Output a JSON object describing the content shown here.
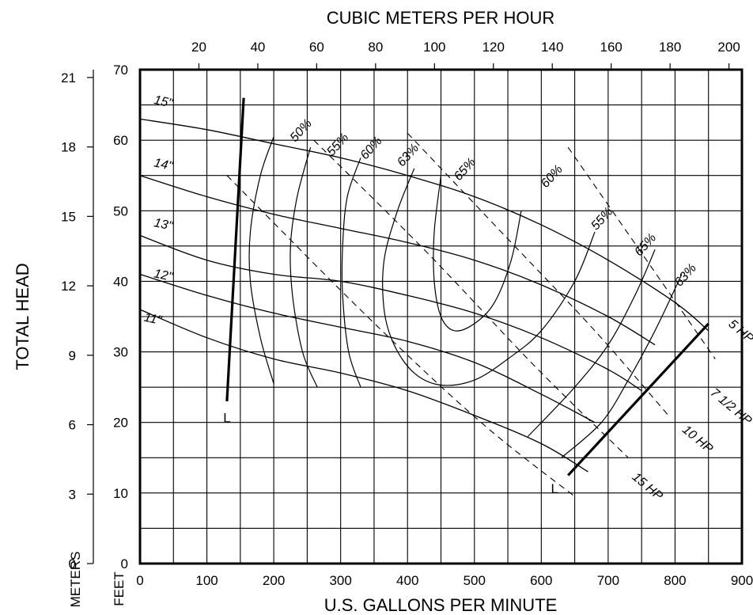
{
  "chart_data": {
    "type": "line",
    "x_bottom": {
      "label": "U.S. GALLONS PER MINUTE",
      "ticks": [
        "0",
        "100",
        "200",
        "300",
        "400",
        "500",
        "600",
        "700",
        "800",
        "900"
      ],
      "range": [
        0,
        900
      ],
      "grid_step": 50
    },
    "x_top": {
      "label": "CUBIC METERS PER HOUR",
      "ticks": [
        "20",
        "40",
        "60",
        "80",
        "100",
        "120",
        "140",
        "160",
        "180",
        "200"
      ],
      "range": [
        0,
        204.4
      ]
    },
    "y_feet": {
      "label": "FEET",
      "ticks": [
        "0",
        "10",
        "20",
        "30",
        "40",
        "50",
        "60",
        "70"
      ],
      "range": [
        0,
        70
      ],
      "grid_step": 5
    },
    "y_meters": {
      "label": "METERS",
      "ticks": [
        "0",
        "3",
        "6",
        "9",
        "12",
        "15",
        "18",
        "21"
      ],
      "range": [
        0,
        21.34
      ]
    },
    "y_title": "TOTAL HEAD",
    "grid": true,
    "impeller_curves": [
      {
        "label": "15\"",
        "points": [
          [
            0,
            63
          ],
          [
            100,
            61.5
          ],
          [
            200,
            59.5
          ],
          [
            300,
            57.5
          ],
          [
            400,
            55
          ],
          [
            500,
            52
          ],
          [
            600,
            48
          ],
          [
            700,
            43
          ],
          [
            800,
            37
          ],
          [
            850,
            33
          ]
        ]
      },
      {
        "label": "14\"",
        "points": [
          [
            0,
            55
          ],
          [
            100,
            52
          ],
          [
            200,
            49.5
          ],
          [
            300,
            47.5
          ],
          [
            400,
            45.5
          ],
          [
            500,
            43
          ],
          [
            600,
            39.5
          ],
          [
            700,
            35
          ],
          [
            770,
            31
          ]
        ]
      },
      {
        "label": "13\"",
        "points": [
          [
            0,
            46.5
          ],
          [
            100,
            43
          ],
          [
            200,
            41
          ],
          [
            300,
            40
          ],
          [
            400,
            38
          ],
          [
            500,
            35.5
          ],
          [
            600,
            32
          ],
          [
            700,
            27.5
          ],
          [
            750,
            24.5
          ]
        ]
      },
      {
        "label": "12\"",
        "points": [
          [
            0,
            41
          ],
          [
            100,
            38
          ],
          [
            200,
            35.5
          ],
          [
            300,
            33.5
          ],
          [
            400,
            31.5
          ],
          [
            500,
            28.5
          ],
          [
            600,
            24
          ],
          [
            680,
            20
          ]
        ]
      },
      {
        "label": "11\"",
        "points": [
          [
            0,
            36
          ],
          [
            100,
            32
          ],
          [
            200,
            29
          ],
          [
            300,
            27
          ],
          [
            400,
            24.5
          ],
          [
            500,
            21
          ],
          [
            600,
            17
          ],
          [
            670,
            13
          ]
        ]
      }
    ],
    "efficiency_curves": [
      {
        "label": "50%",
        "points": [
          [
            200,
            60.5
          ],
          [
            180,
            55
          ],
          [
            165,
            47
          ],
          [
            165,
            40
          ],
          [
            180,
            32
          ],
          [
            200,
            25.5
          ]
        ]
      },
      {
        "label": "55%",
        "points": [
          [
            255,
            59
          ],
          [
            235,
            52
          ],
          [
            225,
            45
          ],
          [
            228,
            38
          ],
          [
            243,
            30
          ],
          [
            265,
            25
          ]
        ]
      },
      {
        "label": "60%",
        "points": [
          [
            330,
            57.5
          ],
          [
            310,
            52
          ],
          [
            303,
            45
          ],
          [
            303,
            38
          ],
          [
            312,
            30
          ],
          [
            330,
            25
          ]
        ]
      },
      {
        "label": "63%",
        "points": [
          [
            410,
            56
          ],
          [
            385,
            50
          ],
          [
            365,
            43
          ],
          [
            365,
            36
          ],
          [
            380,
            31
          ],
          [
            410,
            27
          ],
          [
            450,
            25.3
          ],
          [
            500,
            26
          ],
          [
            550,
            29
          ],
          [
            600,
            33
          ],
          [
            650,
            40
          ],
          [
            680,
            47
          ]
        ]
      },
      {
        "label": "65%",
        "points": [
          [
            450,
            55
          ],
          [
            440,
            47
          ],
          [
            440,
            40
          ],
          [
            450,
            35
          ],
          [
            470,
            33
          ],
          [
            500,
            34
          ],
          [
            530,
            37
          ],
          [
            555,
            43
          ],
          [
            570,
            50
          ]
        ]
      },
      {
        "label": "60%",
        "points": [
          [
            770,
            44.5
          ],
          [
            740,
            38
          ],
          [
            700,
            31
          ],
          [
            650,
            25
          ],
          [
            580,
            18
          ]
        ]
      },
      {
        "label": "55%",
        "points": [
          [
            810,
            41
          ],
          [
            770,
            33
          ],
          [
            730,
            26
          ],
          [
            690,
            20
          ],
          [
            630,
            15
          ]
        ]
      }
    ],
    "hp_lines": [
      {
        "label": "5 HP",
        "points": [
          [
            130,
            55
          ],
          [
            340,
            35
          ],
          [
            510,
            20
          ],
          [
            650,
            9.5
          ]
        ]
      },
      {
        "label": "7 1/2 HP",
        "points": [
          [
            260,
            60
          ],
          [
            430,
            44
          ],
          [
            590,
            28
          ],
          [
            730,
            15
          ]
        ]
      },
      {
        "label": "10 HP",
        "points": [
          [
            400,
            61
          ],
          [
            540,
            47
          ],
          [
            680,
            33
          ],
          [
            790,
            21
          ]
        ]
      },
      {
        "label": "15 HP",
        "points": [
          [
            640,
            59
          ],
          [
            750,
            44
          ],
          [
            860,
            29
          ]
        ]
      }
    ],
    "limit_lines": [
      {
        "label": "L",
        "points": [
          [
            130,
            23
          ],
          [
            155,
            66
          ]
        ]
      },
      {
        "label": "L",
        "points": [
          [
            640,
            12.5
          ],
          [
            850,
            34
          ]
        ]
      }
    ],
    "label_positions": {
      "impeller": [
        [
          20,
          65.2
        ],
        [
          20,
          56.3
        ],
        [
          20,
          47.8
        ],
        [
          20,
          40.6
        ],
        [
          5,
          34.4
        ]
      ],
      "efficiency": [
        [
          245,
          61
        ],
        [
          300,
          59
        ],
        [
          350,
          58.5
        ],
        [
          405,
          57.5
        ],
        [
          490,
          55.5
        ],
        [
          620,
          54.5
        ],
        [
          695,
          48.5
        ],
        [
          760,
          44.8
        ],
        [
          820,
          40.5
        ]
      ],
      "hp": [
        [
          895,
          32.5
        ],
        [
          880,
          21.8
        ],
        [
          830,
          17.2
        ],
        [
          755,
          10.5
        ]
      ],
      "limit": [
        [
          130,
          20
        ],
        [
          620,
          10
        ]
      ]
    }
  }
}
